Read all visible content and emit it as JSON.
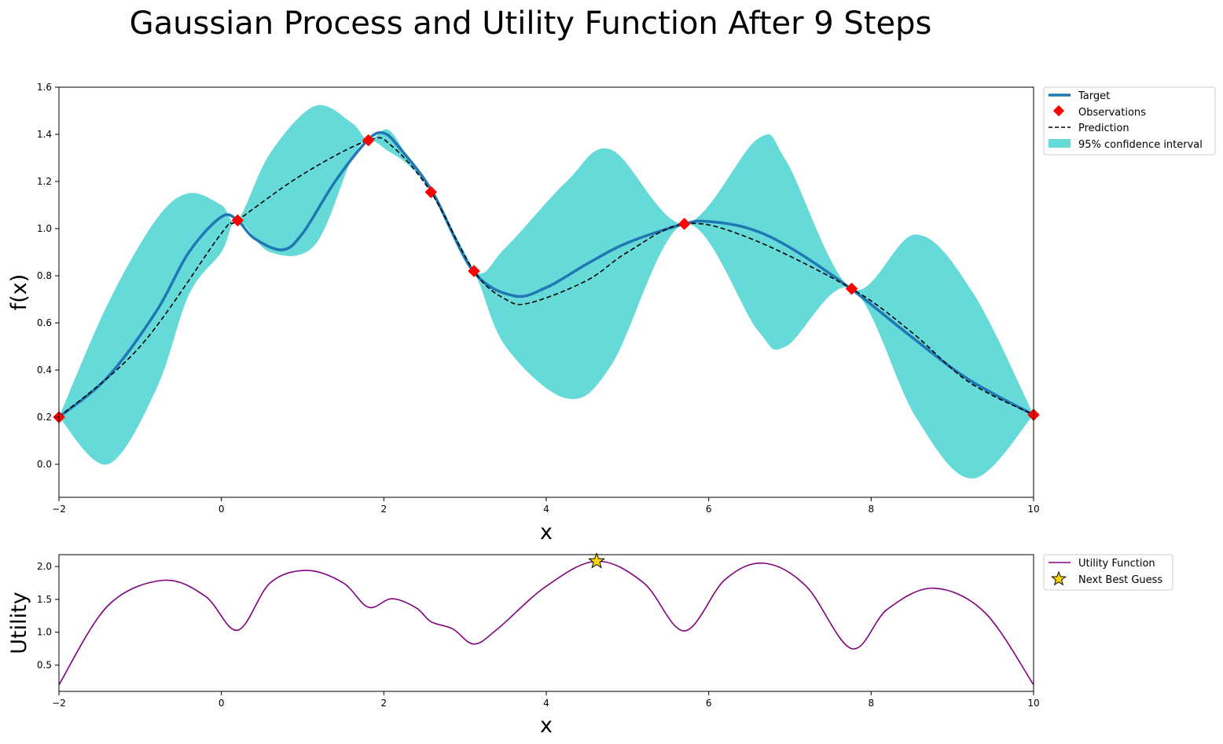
{
  "figure": {
    "title": "Gaussian Process and Utility Function After 9 Steps"
  },
  "colors": {
    "target": "#1f77b4",
    "observation": "#ff0000",
    "prediction": "#000000",
    "confidence": "#66d9d9",
    "utility": "#800080",
    "next_guess": "#ffd700"
  },
  "chart_data": [
    {
      "type": "line",
      "xlabel": "x",
      "ylabel": "f(x)",
      "xlim": [
        -2,
        10
      ],
      "ylim": [
        -0.14,
        1.6
      ],
      "x_ticks": [
        -2,
        0,
        2,
        4,
        6,
        8,
        10
      ],
      "y_ticks": [
        0.0,
        0.2,
        0.4,
        0.6,
        0.8,
        1.0,
        1.2,
        1.4,
        1.6
      ],
      "grid": false,
      "legend_position": "outside-top-right",
      "legend": [
        "Target",
        "Observations",
        "Prediction",
        "95% confidence interval"
      ],
      "series": [
        {
          "name": "Target",
          "style": "solid",
          "x": [
            -2.0,
            -1.4,
            -0.8,
            -0.4,
            0.0,
            0.2,
            0.4,
            0.75,
            1.0,
            1.4,
            1.8,
            2.0,
            2.2,
            2.6,
            3.1,
            3.6,
            4.0,
            4.5,
            5.0,
            5.7,
            6.0,
            6.5,
            7.0,
            7.75,
            8.5,
            9.2,
            10.0
          ],
          "y": [
            0.2,
            0.37,
            0.65,
            0.9,
            1.05,
            1.035,
            0.96,
            0.91,
            0.98,
            1.2,
            1.375,
            1.405,
            1.34,
            1.155,
            0.82,
            0.715,
            0.75,
            0.85,
            0.94,
            1.02,
            1.03,
            1.0,
            0.92,
            0.745,
            0.54,
            0.36,
            0.21
          ]
        },
        {
          "name": "Observations",
          "style": "marker",
          "x": [
            -2.0,
            0.2,
            1.81,
            2.58,
            3.11,
            5.7,
            7.76,
            10.0
          ],
          "y": [
            0.2,
            1.035,
            1.375,
            1.155,
            0.82,
            1.02,
            0.745,
            0.21
          ]
        },
        {
          "name": "Prediction",
          "style": "dashed",
          "x": [
            -2.0,
            -1.0,
            0.0,
            0.2,
            1.0,
            1.81,
            2.1,
            2.58,
            3.11,
            3.5,
            3.8,
            4.5,
            5.0,
            5.7,
            6.5,
            7.76,
            8.5,
            9.2,
            10.0
          ],
          "y": [
            0.2,
            0.5,
            0.98,
            1.035,
            1.23,
            1.375,
            1.35,
            1.155,
            0.82,
            0.7,
            0.685,
            0.78,
            0.9,
            1.02,
            0.96,
            0.745,
            0.56,
            0.35,
            0.21
          ]
        },
        {
          "name": "95% confidence interval",
          "style": "band",
          "x": [
            -2.0,
            -1.4,
            -0.8,
            -0.4,
            0.0,
            0.2,
            0.6,
            1.15,
            1.6,
            1.81,
            2.05,
            2.3,
            2.58,
            3.11,
            3.5,
            4.25,
            4.8,
            5.7,
            6.6,
            6.95,
            7.76,
            8.55,
            9.25,
            10.0
          ],
          "upper": [
            0.2,
            0.68,
            1.04,
            1.15,
            1.1,
            1.035,
            1.32,
            1.52,
            1.45,
            1.375,
            1.42,
            1.3,
            1.155,
            0.82,
            0.92,
            1.2,
            1.335,
            1.02,
            1.38,
            1.29,
            0.745,
            0.975,
            0.73,
            0.21
          ],
          "lower": [
            0.2,
            0.0,
            0.32,
            0.72,
            0.9,
            1.035,
            0.9,
            0.93,
            1.29,
            1.375,
            1.33,
            1.27,
            1.155,
            0.82,
            0.5,
            0.28,
            0.42,
            1.02,
            0.57,
            0.5,
            0.745,
            0.2,
            -0.06,
            0.21
          ]
        }
      ]
    },
    {
      "type": "line",
      "xlabel": "x",
      "ylabel": "Utility",
      "xlim": [
        -2,
        10
      ],
      "ylim": [
        0.1,
        2.18
      ],
      "x_ticks": [
        -2,
        0,
        2,
        4,
        6,
        8,
        10
      ],
      "y_ticks": [
        0.5,
        1.0,
        1.5,
        2.0
      ],
      "grid": false,
      "legend_position": "outside-top-right",
      "legend": [
        "Utility Function",
        "Next Best Guess"
      ],
      "series": [
        {
          "name": "Utility Function",
          "style": "solid",
          "x": [
            -2.0,
            -1.4,
            -0.72,
            -0.2,
            0.2,
            0.6,
            1.05,
            1.5,
            1.81,
            2.1,
            2.4,
            2.58,
            2.85,
            3.11,
            3.4,
            4.0,
            4.62,
            5.2,
            5.7,
            6.2,
            6.68,
            7.2,
            7.76,
            8.2,
            8.77,
            9.4,
            10.0
          ],
          "y": [
            0.2,
            1.4,
            1.79,
            1.55,
            1.03,
            1.75,
            1.94,
            1.75,
            1.38,
            1.51,
            1.37,
            1.16,
            1.05,
            0.82,
            1.05,
            1.7,
            2.08,
            1.75,
            1.02,
            1.8,
            2.05,
            1.7,
            0.75,
            1.35,
            1.67,
            1.3,
            0.2
          ]
        },
        {
          "name": "Next Best Guess",
          "style": "star",
          "x": [
            4.62
          ],
          "y": [
            2.08
          ]
        }
      ]
    }
  ]
}
